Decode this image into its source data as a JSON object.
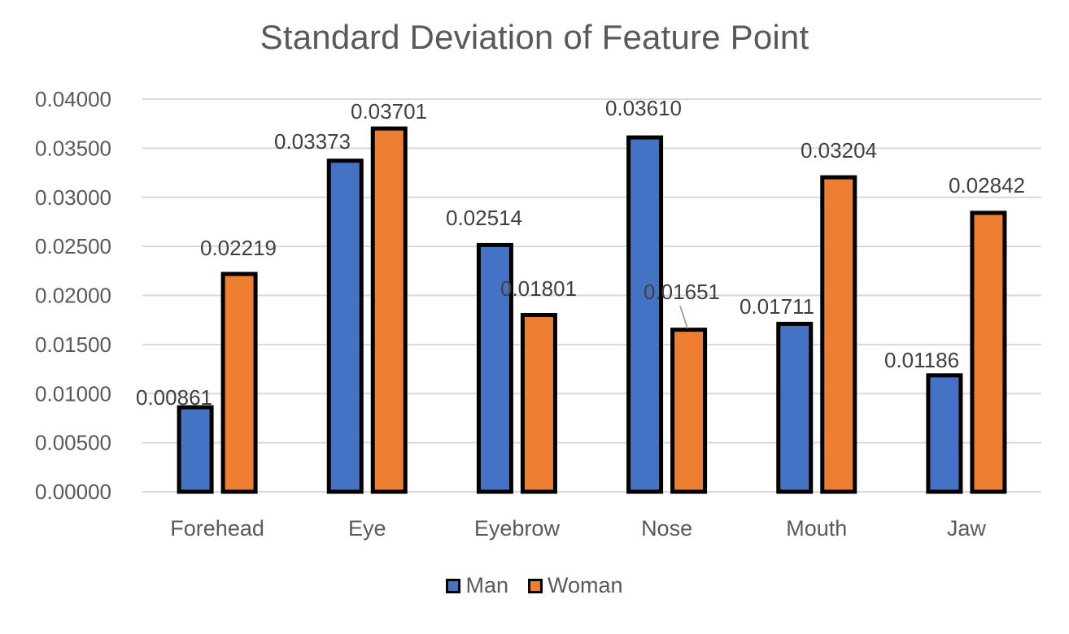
{
  "chart_data": {
    "type": "bar",
    "title": "Standard Deviation of Feature Point",
    "xlabel": "",
    "ylabel": "",
    "categories": [
      "Forehead",
      "Eye",
      "Eyebrow",
      "Nose",
      "Mouth",
      "Jaw"
    ],
    "series": [
      {
        "name": "Man",
        "color": "#4472C4",
        "values": [
          0.00861,
          0.03373,
          0.02514,
          0.0361,
          0.01711,
          0.01186
        ],
        "labels": [
          "0.00861",
          "0.03373",
          "0.02514",
          "0.03610",
          "0.01711",
          "0.01186"
        ]
      },
      {
        "name": "Woman",
        "color": "#ED7D31",
        "values": [
          0.02219,
          0.03701,
          0.01801,
          0.01651,
          0.03204,
          0.02842
        ],
        "labels": [
          "0.02219",
          "0.03701",
          "0.01801",
          "0.01651",
          "0.03204",
          "0.02842"
        ]
      }
    ],
    "ylim": [
      0,
      0.04
    ],
    "yticks": [
      "0.00000",
      "0.00500",
      "0.01000",
      "0.01500",
      "0.02000",
      "0.02500",
      "0.03000",
      "0.03500",
      "0.04000"
    ],
    "ytick_values": [
      0,
      0.005,
      0.01,
      0.015,
      0.02,
      0.025,
      0.03,
      0.035,
      0.04
    ],
    "grid": true,
    "legend_position": "bottom"
  }
}
